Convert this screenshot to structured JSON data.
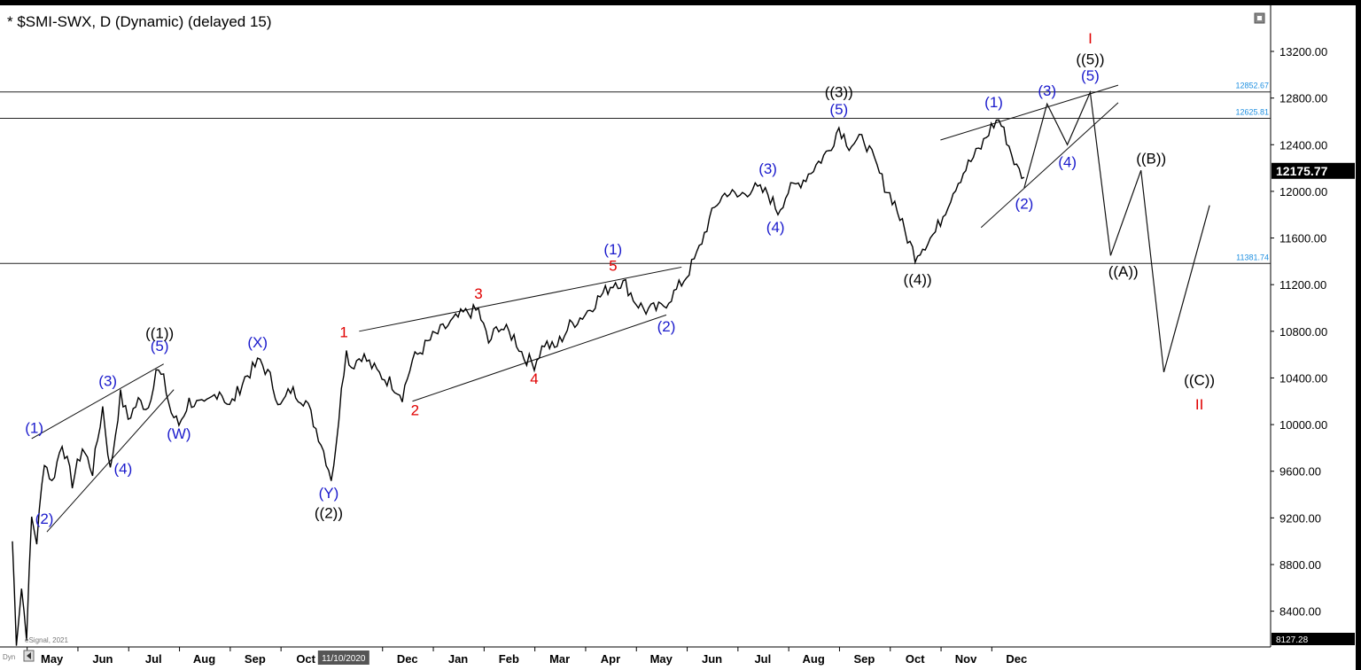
{
  "header": {
    "title": "* $SMI-SWX, D (Dynamic) (delayed 15)",
    "watermark": "eSignal, 2021",
    "corner_label": "Dyn"
  },
  "colors": {
    "axis_bg": "#000000",
    "price": "#000000",
    "blue": "#1a1acc",
    "red": "#e00000",
    "level": "#1e8fe0",
    "last_price_bg": "#000000"
  },
  "chart_data": {
    "type": "line",
    "title": "* $SMI-SWX, D (Dynamic) (delayed 15)",
    "ylim": [
      8127.28,
      13550
    ],
    "y_ticks": [
      {
        "value": 13200,
        "label": "13200.00"
      },
      {
        "value": 12800,
        "label": "12800.00"
      },
      {
        "value": 12400,
        "label": "12400.00"
      },
      {
        "value": 12000,
        "label": "12000.00"
      },
      {
        "value": 11600,
        "label": "11600.00"
      },
      {
        "value": 11200,
        "label": "11200.00"
      },
      {
        "value": 10800,
        "label": "10800.00"
      },
      {
        "value": 10400,
        "label": "10400.00"
      },
      {
        "value": 10000,
        "label": "10000.00"
      },
      {
        "value": 9600,
        "label": "9600.00"
      },
      {
        "value": 9200,
        "label": "9200.00"
      },
      {
        "value": 8800,
        "label": "8800.00"
      },
      {
        "value": 8400,
        "label": "8400.00"
      }
    ],
    "y_bottom_label": "8127.28",
    "last_price": {
      "value": 12175.77,
      "label": "12175.77"
    },
    "x_ticks": [
      {
        "x": 0.5,
        "label": "May"
      },
      {
        "x": 1.5,
        "label": "Jun"
      },
      {
        "x": 2.5,
        "label": "Jul"
      },
      {
        "x": 3.5,
        "label": "Aug"
      },
      {
        "x": 4.5,
        "label": "Sep"
      },
      {
        "x": 5.5,
        "label": "Oct"
      },
      {
        "x": 7.5,
        "label": "Dec"
      },
      {
        "x": 8.5,
        "label": "Jan"
      },
      {
        "x": 9.5,
        "label": "Feb"
      },
      {
        "x": 10.5,
        "label": "Mar"
      },
      {
        "x": 11.5,
        "label": "Apr"
      },
      {
        "x": 12.5,
        "label": "May"
      },
      {
        "x": 13.5,
        "label": "Jun"
      },
      {
        "x": 14.5,
        "label": "Jul"
      },
      {
        "x": 15.5,
        "label": "Aug"
      },
      {
        "x": 16.5,
        "label": "Sep"
      },
      {
        "x": 17.5,
        "label": "Oct"
      },
      {
        "x": 18.5,
        "label": "Nov"
      },
      {
        "x": 19.5,
        "label": "Dec"
      }
    ],
    "x_highlight": {
      "x": 6.0,
      "label": "11/10/2020"
    },
    "xlim": [
      -0.3,
      24.0
    ],
    "levels": [
      {
        "value": 12852.67,
        "label": "12852.67"
      },
      {
        "value": 12625.81,
        "label": "12625.81"
      },
      {
        "value": 11381.74,
        "label": "11381.74"
      }
    ],
    "price_path": [
      [
        -0.28,
        9000
      ],
      [
        -0.2,
        8150
      ],
      [
        -0.1,
        8600
      ],
      [
        0.0,
        8200
      ],
      [
        0.1,
        9200
      ],
      [
        0.2,
        9000
      ],
      [
        0.35,
        9700
      ],
      [
        0.5,
        9500
      ],
      [
        0.7,
        9850
      ],
      [
        0.9,
        9500
      ],
      [
        1.1,
        9800
      ],
      [
        1.3,
        9600
      ],
      [
        1.5,
        10150
      ],
      [
        1.65,
        9600
      ],
      [
        1.85,
        10250
      ],
      [
        2.0,
        10050
      ],
      [
        2.2,
        10200
      ],
      [
        2.4,
        10150
      ],
      [
        2.55,
        10480
      ],
      [
        2.7,
        10380
      ],
      [
        2.85,
        10100
      ],
      [
        3.0,
        10000
      ],
      [
        3.2,
        10200
      ],
      [
        3.5,
        10150
      ],
      [
        3.8,
        10300
      ],
      [
        4.0,
        10150
      ],
      [
        4.3,
        10400
      ],
      [
        4.6,
        10550
      ],
      [
        4.8,
        10400
      ],
      [
        5.0,
        10150
      ],
      [
        5.2,
        10300
      ],
      [
        5.5,
        10200
      ],
      [
        5.8,
        9850
      ],
      [
        6.0,
        9550
      ],
      [
        6.1,
        9800
      ],
      [
        6.2,
        10350
      ],
      [
        6.3,
        10620
      ],
      [
        6.4,
        10500
      ],
      [
        6.6,
        10600
      ],
      [
        6.9,
        10450
      ],
      [
        7.2,
        10350
      ],
      [
        7.4,
        10250
      ],
      [
        7.6,
        10550
      ],
      [
        7.8,
        10650
      ],
      [
        8.0,
        10750
      ],
      [
        8.3,
        10850
      ],
      [
        8.6,
        10950
      ],
      [
        8.9,
        10980
      ],
      [
        9.1,
        10700
      ],
      [
        9.3,
        10850
      ],
      [
        9.6,
        10750
      ],
      [
        9.8,
        10580
      ],
      [
        10.0,
        10520
      ],
      [
        10.2,
        10700
      ],
      [
        10.4,
        10650
      ],
      [
        10.7,
        10850
      ],
      [
        11.0,
        10950
      ],
      [
        11.3,
        11100
      ],
      [
        11.6,
        11230
      ],
      [
        11.8,
        11200
      ],
      [
        12.0,
        11050
      ],
      [
        12.2,
        10980
      ],
      [
        12.5,
        11000
      ],
      [
        12.8,
        11150
      ],
      [
        13.0,
        11280
      ],
      [
        13.2,
        11450
      ],
      [
        13.4,
        11700
      ],
      [
        13.6,
        11900
      ],
      [
        13.8,
        12000
      ],
      [
        14.0,
        11950
      ],
      [
        14.3,
        12030
      ],
      [
        14.6,
        11980
      ],
      [
        14.8,
        11830
      ],
      [
        15.0,
        12000
      ],
      [
        15.3,
        12100
      ],
      [
        15.6,
        12250
      ],
      [
        15.8,
        12350
      ],
      [
        16.0,
        12550
      ],
      [
        16.2,
        12400
      ],
      [
        16.5,
        12450
      ],
      [
        16.7,
        12250
      ],
      [
        16.9,
        12050
      ],
      [
        17.1,
        11900
      ],
      [
        17.3,
        11650
      ],
      [
        17.5,
        11450
      ],
      [
        17.7,
        11550
      ],
      [
        17.9,
        11650
      ],
      [
        18.1,
        11850
      ],
      [
        18.3,
        12050
      ],
      [
        18.5,
        12200
      ],
      [
        18.8,
        12380
      ],
      [
        19.0,
        12550
      ],
      [
        19.15,
        12620
      ],
      [
        19.3,
        12450
      ],
      [
        19.5,
        12200
      ],
      [
        19.65,
        12120
      ]
    ],
    "projection_path": [
      [
        19.65,
        12030
      ],
      [
        20.1,
        12750
      ],
      [
        20.5,
        12400
      ],
      [
        20.95,
        12850
      ],
      [
        21.35,
        11450
      ],
      [
        21.95,
        12180
      ],
      [
        22.4,
        10450
      ],
      [
        23.3,
        11880
      ]
    ],
    "trendlines": [
      [
        [
          0.1,
          9880
        ],
        [
          2.7,
          10520
        ]
      ],
      [
        [
          0.4,
          9080
        ],
        [
          2.9,
          10300
        ]
      ],
      [
        [
          6.55,
          10800
        ],
        [
          12.9,
          11350
        ]
      ],
      [
        [
          7.6,
          10200
        ],
        [
          12.6,
          10940
        ]
      ],
      [
        [
          18.0,
          12440
        ],
        [
          21.5,
          12910
        ]
      ],
      [
        [
          18.8,
          11690
        ],
        [
          21.5,
          12760
        ]
      ]
    ],
    "wave_labels": [
      {
        "text": "(1)",
        "x": 0.15,
        "y": 9930,
        "color": "blue"
      },
      {
        "text": "(2)",
        "x": 0.35,
        "y": 9150,
        "color": "blue"
      },
      {
        "text": "(3)",
        "x": 1.6,
        "y": 10330,
        "color": "blue"
      },
      {
        "text": "(4)",
        "x": 1.9,
        "y": 9580,
        "color": "blue"
      },
      {
        "text": "(5)",
        "x": 2.62,
        "y": 10630,
        "color": "blue"
      },
      {
        "text": "((1))",
        "x": 2.62,
        "y": 10740,
        "color": "black"
      },
      {
        "text": "(W)",
        "x": 3.0,
        "y": 9880,
        "color": "blue"
      },
      {
        "text": "(X)",
        "x": 4.55,
        "y": 10660,
        "color": "blue"
      },
      {
        "text": "(Y)",
        "x": 5.95,
        "y": 9370,
        "color": "blue"
      },
      {
        "text": "((2))",
        "x": 5.95,
        "y": 9200,
        "color": "black"
      },
      {
        "text": "1",
        "x": 6.25,
        "y": 10750,
        "color": "red"
      },
      {
        "text": "2",
        "x": 7.65,
        "y": 10080,
        "color": "red"
      },
      {
        "text": "3",
        "x": 8.9,
        "y": 11080,
        "color": "red"
      },
      {
        "text": "4",
        "x": 10.0,
        "y": 10350,
        "color": "red"
      },
      {
        "text": "5",
        "x": 11.55,
        "y": 11320,
        "color": "red"
      },
      {
        "text": "(1)",
        "x": 11.55,
        "y": 11460,
        "color": "blue"
      },
      {
        "text": "(2)",
        "x": 12.6,
        "y": 10800,
        "color": "blue"
      },
      {
        "text": "(3)",
        "x": 14.6,
        "y": 12150,
        "color": "blue"
      },
      {
        "text": "(4)",
        "x": 14.75,
        "y": 11650,
        "color": "blue"
      },
      {
        "text": "(5)",
        "x": 16.0,
        "y": 12660,
        "color": "blue"
      },
      {
        "text": "((3))",
        "x": 16.0,
        "y": 12810,
        "color": "black"
      },
      {
        "text": "((4))",
        "x": 17.55,
        "y": 11200,
        "color": "black"
      },
      {
        "text": "(1)",
        "x": 19.05,
        "y": 12720,
        "color": "blue"
      },
      {
        "text": "(2)",
        "x": 19.65,
        "y": 11850,
        "color": "blue"
      },
      {
        "text": "(3)",
        "x": 20.1,
        "y": 12820,
        "color": "blue"
      },
      {
        "text": "(4)",
        "x": 20.5,
        "y": 12210,
        "color": "blue"
      },
      {
        "text": "(5)",
        "x": 20.95,
        "y": 12950,
        "color": "blue"
      },
      {
        "text": "((5))",
        "x": 20.95,
        "y": 13090,
        "color": "black"
      },
      {
        "text": "I",
        "x": 20.95,
        "y": 13270,
        "color": "red"
      },
      {
        "text": "((A))",
        "x": 21.6,
        "y": 11270,
        "color": "black"
      },
      {
        "text": "((B))",
        "x": 22.15,
        "y": 12240,
        "color": "black"
      },
      {
        "text": "((C))",
        "x": 23.1,
        "y": 10340,
        "color": "black"
      },
      {
        "text": "II",
        "x": 23.1,
        "y": 10130,
        "color": "red"
      }
    ]
  }
}
